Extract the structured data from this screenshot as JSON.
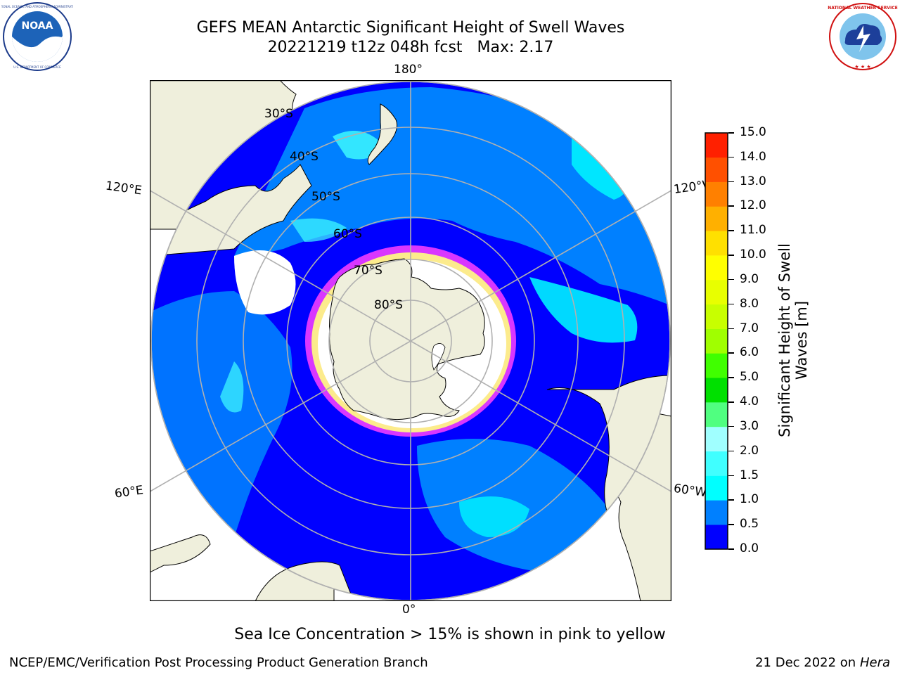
{
  "header": {
    "title_line1": "GEFS MEAN Antarctic Significant Height of Swell Waves",
    "title_line2_run": "20221219 t12z 048h fcst",
    "title_line2_max": "Max: 2.17"
  },
  "logos": {
    "left": {
      "name": "NOAA",
      "ring_text": "NATIONAL OCEANIC AND ATMOSPHERIC ADMINISTRATION",
      "bottom_text": "U.S. DEPARTMENT OF COMMERCE"
    },
    "right": {
      "ring_text": "NATIONAL WEATHER SERVICE"
    }
  },
  "map": {
    "projection": "south-polar-stereographic",
    "lon_labels": {
      "top": "180°",
      "bottom": "0°",
      "upper_left": "120°E",
      "upper_right": "120°W",
      "lower_left": "60°E",
      "lower_right": "60°W"
    },
    "lat_labels": [
      "30°S",
      "40°S",
      "50°S",
      "60°S",
      "70°S",
      "80°S"
    ],
    "colors": {
      "land": "#efefdc",
      "swell_0": "#0000ff",
      "swell_05": "#0080ff",
      "swell_1": "#00ffff",
      "swell_15": "#40ffff",
      "sea_ice": "#ffffff",
      "ice_edge_pink": "#ff40ff",
      "ice_edge_yellow": "#ffff80",
      "grid": "#b0b0b0"
    }
  },
  "colorbar": {
    "label": "Significant Height of Swell Waves [m]",
    "ticks": [
      "0.0",
      "0.5",
      "1.0",
      "1.5",
      "2.0",
      "3.0",
      "4.0",
      "5.0",
      "6.0",
      "7.0",
      "8.0",
      "9.0",
      "10.0",
      "11.0",
      "12.0",
      "13.0",
      "14.0",
      "15.0"
    ],
    "colors": [
      "#0000ff",
      "#0080ff",
      "#00ffff",
      "#40ffff",
      "#a0ffff",
      "#50ff80",
      "#00e000",
      "#40ff00",
      "#a0ff00",
      "#c8ff00",
      "#e8ff00",
      "#ffff00",
      "#ffe000",
      "#ffb000",
      "#ff8000",
      "#ff5000",
      "#ff2000"
    ]
  },
  "footer": {
    "note": "Sea Ice Concentration > 15% is shown in pink to yellow",
    "credit": "NCEP/EMC/Verification Post Processing Product Generation Branch",
    "date_text": "21 Dec 2022 on",
    "host": "Hera"
  }
}
